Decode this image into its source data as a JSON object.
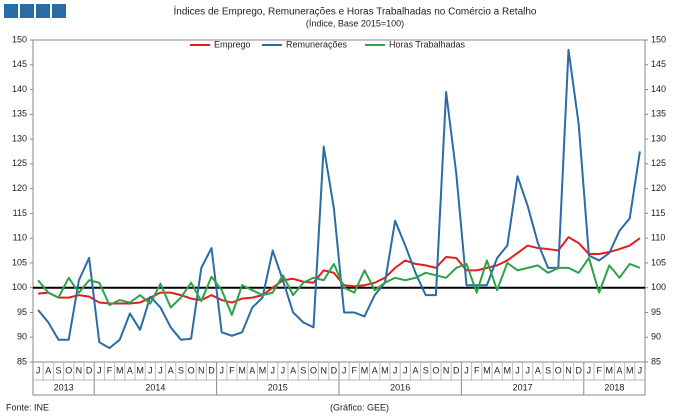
{
  "chart_data": {
    "type": "line",
    "title": "Índices de Emprego, Remunerações e Horas Trabalhadas no Comércio a Retalho",
    "subtitle": "(Índice, Base 2015=100)",
    "categories": [
      "J",
      "A",
      "S",
      "O",
      "N",
      "D",
      "J",
      "F",
      "M",
      "A",
      "M",
      "J",
      "J",
      "A",
      "S",
      "O",
      "N",
      "D",
      "J",
      "F",
      "M",
      "A",
      "M",
      "J",
      "J",
      "A",
      "S",
      "O",
      "N",
      "D",
      "J",
      "F",
      "M",
      "A",
      "M",
      "J",
      "J",
      "A",
      "S",
      "O",
      "N",
      "D",
      "J",
      "F",
      "M",
      "A",
      "M",
      "J",
      "J",
      "A",
      "S",
      "O",
      "N",
      "D",
      "J",
      "F",
      "M",
      "A",
      "M",
      "J"
    ],
    "year_labels": [
      "2013",
      "2014",
      "2015",
      "2016",
      "2017",
      "2018"
    ],
    "series": [
      {
        "name": "Emprego",
        "color": "#e0201c",
        "values": [
          98.8,
          99,
          98,
          98,
          98.5,
          98.2,
          97,
          96.8,
          96.8,
          96.8,
          97,
          98,
          99,
          99,
          98.5,
          97.8,
          97.5,
          98.5,
          97.5,
          97,
          97.8,
          98,
          98.5,
          100,
          101.5,
          101.8,
          101.2,
          101,
          103.5,
          103,
          100.5,
          100.3,
          100.5,
          101,
          102,
          104,
          105.5,
          104.8,
          104.5,
          104,
          106.2,
          106,
          103.5,
          103.5,
          104,
          104.5,
          105.5,
          107,
          108.5,
          108,
          107.8,
          107.5,
          110.2,
          109,
          106.8,
          106.8,
          107.2,
          107.8,
          108.5,
          110
        ]
      },
      {
        "name": "Remunerações",
        "color": "#2a6ca6",
        "values": [
          95.5,
          93,
          89.5,
          89.5,
          101.5,
          106,
          89,
          87.8,
          89.5,
          94.8,
          91.5,
          98.2,
          96,
          92,
          89.5,
          89.7,
          104,
          108,
          91,
          90.3,
          91,
          96,
          98,
          107.5,
          101.5,
          95,
          93,
          92,
          128.5,
          116,
          95,
          95,
          94.2,
          98.5,
          101,
          113.5,
          108.5,
          103,
          98.5,
          98.5,
          139.5,
          123,
          100.5,
          100.5,
          100.5,
          106,
          108.5,
          122.5,
          116.5,
          109,
          104,
          104,
          148,
          133,
          106.5,
          105.5,
          107,
          111.5,
          114,
          127.5
        ]
      },
      {
        "name": "Horas Trabalhadas",
        "color": "#2ca24a",
        "values": [
          101.5,
          99,
          98,
          102,
          99,
          101.5,
          101,
          96.5,
          97.5,
          97,
          98.5,
          96.8,
          100.8,
          96,
          98,
          101,
          97.3,
          102.2,
          99.5,
          94.5,
          100.5,
          99.5,
          98.5,
          99,
          102.5,
          98.5,
          101,
          102,
          101.5,
          104.8,
          100,
          99,
          103.5,
          99.5,
          101,
          102,
          101.5,
          102,
          103,
          102.5,
          102,
          104,
          104.8,
          99,
          105.5,
          99.5,
          105,
          103.5,
          104,
          104.5,
          103,
          104,
          104,
          103,
          106,
          99,
          104.5,
          102,
          104.8,
          104
        ]
      }
    ],
    "reference_line": 100,
    "ylim": [
      85,
      150
    ],
    "yticks": [
      85,
      90,
      95,
      100,
      105,
      110,
      115,
      120,
      125,
      130,
      135,
      140,
      145,
      150
    ],
    "y2lim": [
      85,
      150
    ],
    "y2ticks": [
      85,
      90,
      95,
      100,
      105,
      110,
      115,
      120,
      125,
      130,
      135,
      140,
      145,
      150
    ],
    "source": "Fonte: INE",
    "credit": "(Gráfico: GEE)"
  }
}
